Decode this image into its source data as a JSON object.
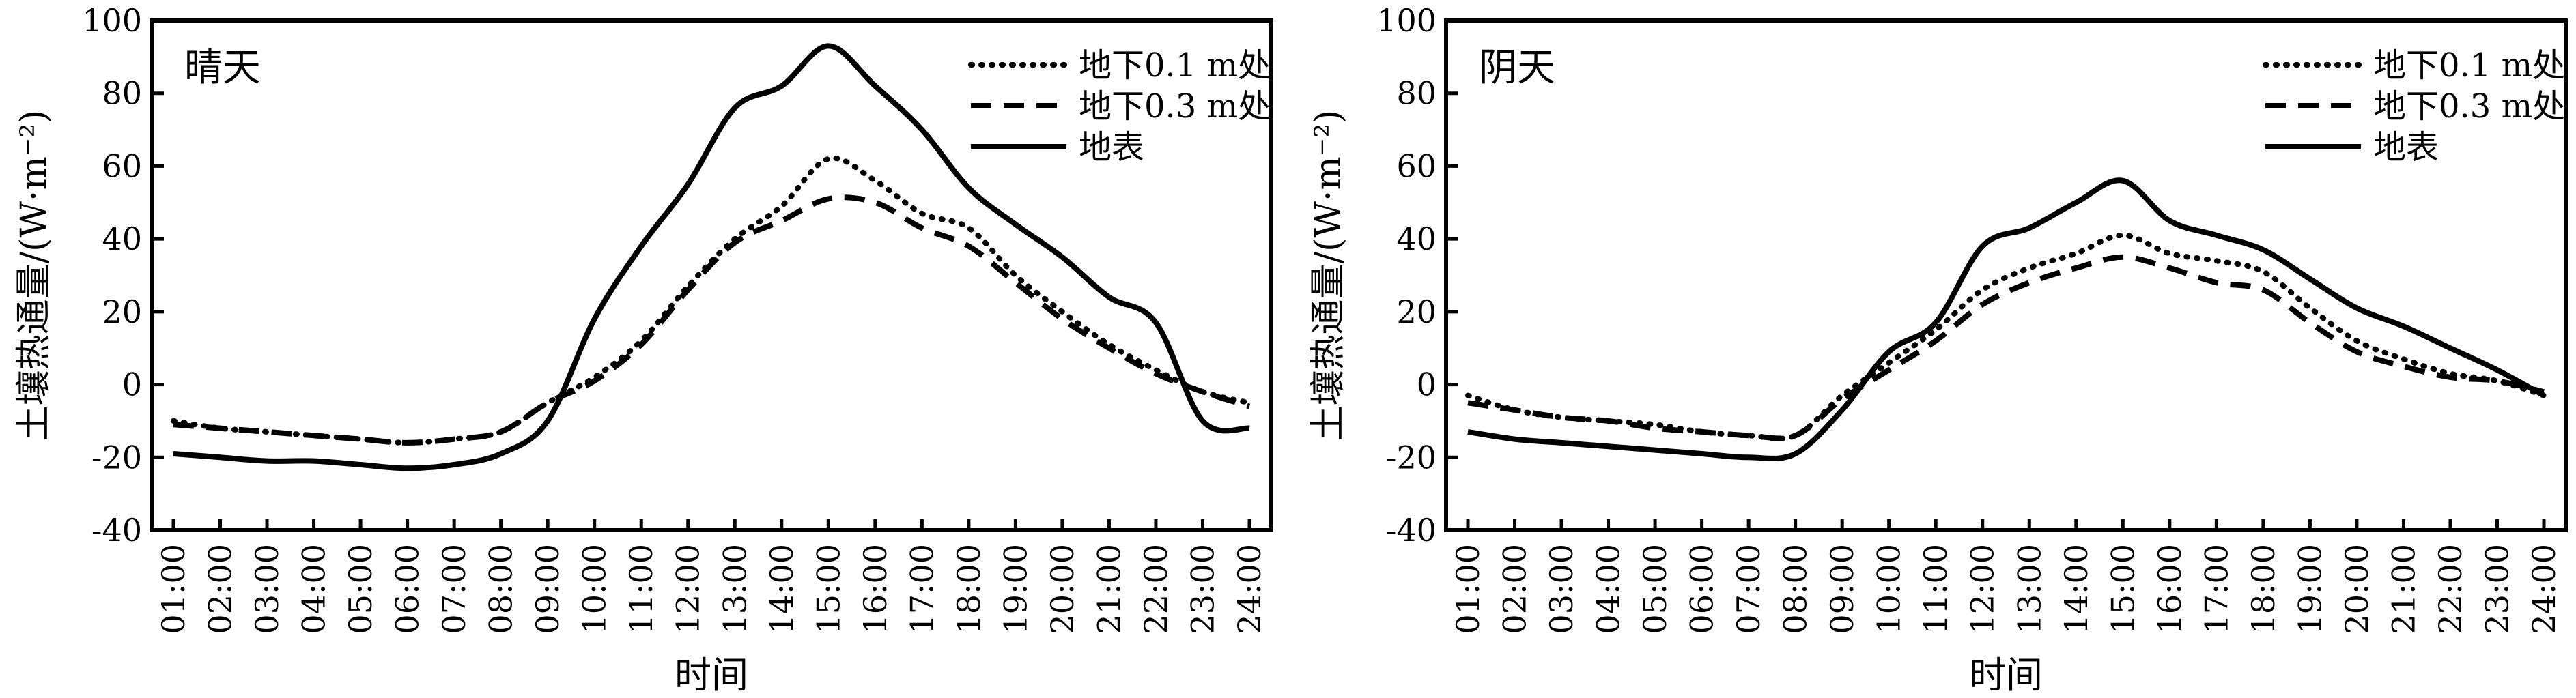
{
  "chart_data": [
    {
      "type": "line",
      "title": "晴天",
      "xlabel": "时间",
      "ylabel": "土壤热通量/(W·m⁻²)",
      "ylim": [
        -40,
        100
      ],
      "yticks": [
        "-40",
        "-20",
        "0",
        "20",
        "40",
        "60",
        "80",
        "100"
      ],
      "categories": [
        "01:00",
        "02:00",
        "03:00",
        "04:00",
        "05:00",
        "06:00",
        "07:00",
        "08:00",
        "09:00",
        "10:00",
        "11:00",
        "12:00",
        "13:00",
        "14:00",
        "15:00",
        "16:00",
        "17:00",
        "18:00",
        "19:00",
        "20:00",
        "21:00",
        "22:00",
        "23:00",
        "24:00"
      ],
      "grid": false,
      "legend_position": "top-right",
      "series": [
        {
          "name": "地下0.1 m处",
          "style": "dotted",
          "values": [
            -10,
            -12,
            -13,
            -14,
            -15,
            -16,
            -15,
            -13,
            -5,
            2,
            12,
            27,
            40,
            49,
            62,
            56,
            47,
            43,
            30,
            20,
            11,
            4,
            -2,
            -5
          ]
        },
        {
          "name": "地下0.3 m处",
          "style": "dashed",
          "values": [
            -11,
            -12,
            -13,
            -14,
            -15,
            -16,
            -15,
            -13,
            -5,
            1,
            11,
            26,
            39,
            45,
            51,
            50,
            43,
            38,
            28,
            18,
            10,
            3,
            -2,
            -6
          ]
        },
        {
          "name": "地表",
          "style": "solid",
          "values": [
            -19,
            -20,
            -21,
            -21,
            -22,
            -23,
            -22,
            -19,
            -10,
            18,
            38,
            55,
            76,
            82,
            93,
            82,
            70,
            54,
            44,
            35,
            24,
            17,
            -10,
            -12
          ]
        }
      ]
    },
    {
      "type": "line",
      "title": "阴天",
      "xlabel": "时间",
      "ylabel": "土壤热通量/(W·m⁻²)",
      "ylim": [
        -40,
        100
      ],
      "yticks": [
        "-40",
        "-20",
        "0",
        "20",
        "40",
        "60",
        "80",
        "100"
      ],
      "categories": [
        "01:00",
        "02:00",
        "03:00",
        "04:00",
        "05:00",
        "06:00",
        "07:00",
        "08:00",
        "09:00",
        "10:00",
        "11:00",
        "12:00",
        "13:00",
        "14:00",
        "15:00",
        "16:00",
        "17:00",
        "18:00",
        "19:00",
        "20:00",
        "21:00",
        "22:00",
        "23:00",
        "24:00"
      ],
      "grid": false,
      "legend_position": "top-right",
      "series": [
        {
          "name": "地下0.1 m处",
          "style": "dotted",
          "values": [
            -3,
            -7,
            -9,
            -10,
            -11,
            -13,
            -14,
            -14,
            -3,
            6,
            15,
            26,
            32,
            36,
            41,
            36,
            34,
            31,
            21,
            12,
            7,
            3,
            1,
            -3
          ]
        },
        {
          "name": "地下0.3 m处",
          "style": "dashed",
          "values": [
            -5,
            -7,
            -9,
            -10,
            -12,
            -13,
            -14,
            -14,
            -4,
            4,
            12,
            22,
            28,
            32,
            35,
            32,
            28,
            26,
            17,
            9,
            5,
            2,
            1,
            -2
          ]
        },
        {
          "name": "地表",
          "style": "solid",
          "values": [
            -13,
            -15,
            -16,
            -17,
            -18,
            -19,
            -20,
            -19,
            -7,
            9,
            17,
            38,
            43,
            50,
            56,
            45,
            41,
            37,
            29,
            21,
            16,
            10,
            4,
            -3
          ]
        }
      ]
    }
  ]
}
